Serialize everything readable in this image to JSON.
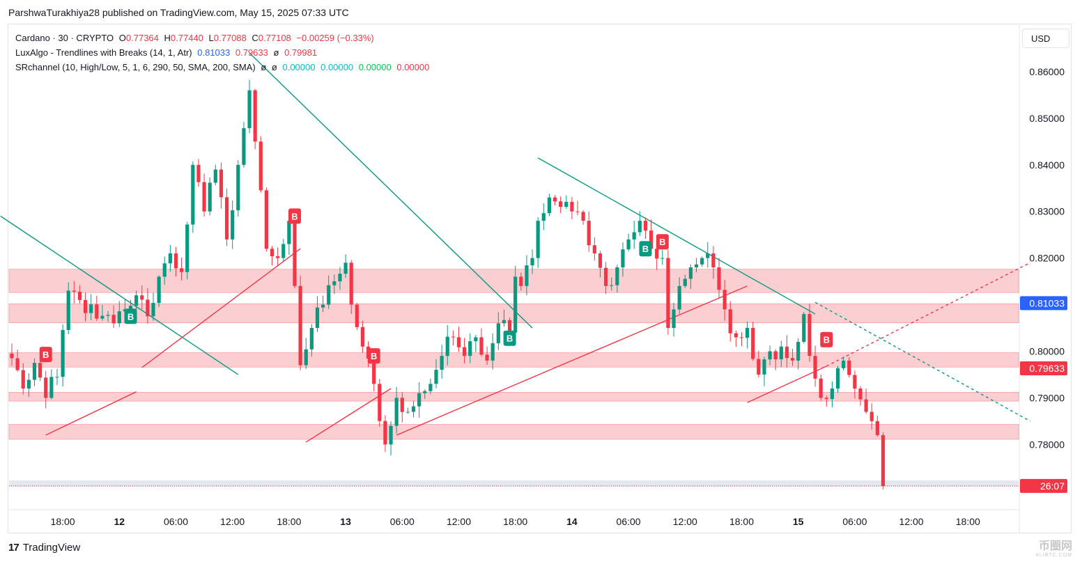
{
  "header": {
    "publisher_line": "ParshwaTurakhiya28 published on TradingView.com, May 15, 2025 07:33 UTC"
  },
  "legend": {
    "symbol": "Cardano · 30 · CRYPTO",
    "o_label": "O",
    "o_value": "0.77364",
    "h_label": "H",
    "h_value": "0.77440",
    "l_label": "L",
    "l_value": "0.77088",
    "c_label": "C",
    "c_value": "0.77108",
    "change": "−0.00259 (−0.33%)",
    "ind1_name": "LuxAlgo - Trendlines with Breaks (14, 1, Atr)",
    "ind1_v1": "0.81033",
    "ind1_v2": "0.79633",
    "ind1_v3": "ø",
    "ind1_v4": "0.79981",
    "ind2_name": "SRchannel (10, High/Low, 5, 1, 6, 290, 50, SMA, 200, SMA)",
    "ind2_sym1": "ø",
    "ind2_sym2": "ø",
    "ind2_v1": "0.00000",
    "ind2_v2": "0.00000",
    "ind2_v3": "0.00000",
    "ind2_v4": "0.00000"
  },
  "currency_button": "USD",
  "footer": {
    "logo": "17",
    "brand": "TradingView"
  },
  "watermark": {
    "main": "币圈网",
    "sub": "ALIBTC.COM"
  },
  "colors": {
    "up": "#089981",
    "down": "#f23645",
    "zone": "#f7a8ab",
    "trend_down": "#089981",
    "trend_up": "#f23645",
    "blue_badge": "#2962ff"
  },
  "chart_data": {
    "type": "candlestick",
    "title": "Cardano · 30 · CRYPTO",
    "ylim": [
      0.766,
      0.87
    ],
    "y_ticks": [
      "0.86000",
      "0.85000",
      "0.84000",
      "0.83000",
      "0.82000",
      "0.80000",
      "0.79000",
      "0.78000"
    ],
    "y_tick_values": [
      0.86,
      0.85,
      0.84,
      0.83,
      0.82,
      0.8,
      0.79,
      0.78
    ],
    "x_ticks": [
      "18:00",
      "12",
      "06:00",
      "12:00",
      "18:00",
      "13",
      "06:00",
      "12:00",
      "18:00",
      "14",
      "06:00",
      "12:00",
      "18:00",
      "15",
      "06:00",
      "12:00",
      "18:00"
    ],
    "x_tick_bars": [
      9,
      19,
      29,
      39,
      49,
      59,
      69,
      79,
      89,
      99,
      109,
      119,
      129,
      139,
      149,
      159,
      169
    ],
    "bar_count": 178,
    "price_labels": [
      {
        "text": "0.81033",
        "value": 0.81033,
        "color": "#2962ff"
      },
      {
        "text": "0.79633",
        "value": 0.79633,
        "color": "#f23645"
      },
      {
        "text": "26:07",
        "value": 0.7711,
        "color": "#f23645"
      }
    ],
    "sr_zones": [
      {
        "low": 0.8126,
        "high": 0.8176
      },
      {
        "low": 0.8061,
        "high": 0.8102
      },
      {
        "low": 0.7966,
        "high": 0.7997
      },
      {
        "low": 0.7893,
        "high": 0.7912
      },
      {
        "low": 0.7811,
        "high": 0.7843
      }
    ],
    "last_price_zone": {
      "low": 0.7709,
      "high": 0.7723
    },
    "anchor_closes": [
      [
        0,
        0.7985
      ],
      [
        2,
        0.792
      ],
      [
        4,
        0.7975
      ],
      [
        6,
        0.79
      ],
      [
        8,
        0.7945
      ],
      [
        10,
        0.813
      ],
      [
        12,
        0.811
      ],
      [
        15,
        0.807
      ],
      [
        18,
        0.806
      ],
      [
        20,
        0.809
      ],
      [
        22,
        0.812
      ],
      [
        24,
        0.8075
      ],
      [
        26,
        0.816
      ],
      [
        28,
        0.821
      ],
      [
        30,
        0.817
      ],
      [
        32,
        0.84
      ],
      [
        34,
        0.83
      ],
      [
        36,
        0.839
      ],
      [
        38,
        0.824
      ],
      [
        40,
        0.84
      ],
      [
        42,
        0.856
      ],
      [
        43,
        0.845
      ],
      [
        45,
        0.822
      ],
      [
        47,
        0.82
      ],
      [
        49,
        0.828
      ],
      [
        50,
        0.814
      ],
      [
        51,
        0.797
      ],
      [
        53,
        0.805
      ],
      [
        55,
        0.81
      ],
      [
        57,
        0.815
      ],
      [
        59,
        0.819
      ],
      [
        60,
        0.81
      ],
      [
        62,
        0.801
      ],
      [
        64,
        0.793
      ],
      [
        66,
        0.78
      ],
      [
        67,
        0.784
      ],
      [
        68,
        0.79
      ],
      [
        70,
        0.787
      ],
      [
        72,
        0.791
      ],
      [
        74,
        0.793
      ],
      [
        76,
        0.799
      ],
      [
        78,
        0.803
      ],
      [
        80,
        0.799
      ],
      [
        82,
        0.803
      ],
      [
        84,
        0.798
      ],
      [
        86,
        0.806
      ],
      [
        88,
        0.804
      ],
      [
        89,
        0.816
      ],
      [
        90,
        0.814
      ],
      [
        92,
        0.82
      ],
      [
        93,
        0.828
      ],
      [
        95,
        0.833
      ],
      [
        97,
        0.831
      ],
      [
        99,
        0.83
      ],
      [
        101,
        0.828
      ],
      [
        103,
        0.821
      ],
      [
        105,
        0.814
      ],
      [
        107,
        0.818
      ],
      [
        109,
        0.824
      ],
      [
        111,
        0.828
      ],
      [
        113,
        0.822
      ],
      [
        115,
        0.82
      ],
      [
        116,
        0.805
      ],
      [
        118,
        0.814
      ],
      [
        120,
        0.818
      ],
      [
        122,
        0.82
      ],
      [
        124,
        0.818
      ],
      [
        126,
        0.809
      ],
      [
        128,
        0.803
      ],
      [
        130,
        0.805
      ],
      [
        132,
        0.795
      ],
      [
        134,
        0.8
      ],
      [
        136,
        0.801
      ],
      [
        138,
        0.798
      ],
      [
        140,
        0.808
      ],
      [
        141,
        0.799
      ],
      [
        143,
        0.79
      ],
      [
        145,
        0.792
      ],
      [
        147,
        0.798
      ],
      [
        149,
        0.792
      ],
      [
        151,
        0.787
      ],
      [
        152,
        0.785
      ],
      [
        153,
        0.782
      ],
      [
        154,
        0.7711
      ]
    ],
    "trendlines_down": [
      {
        "from": [
          -2,
          0.829
        ],
        "to": [
          40,
          0.795
        ]
      },
      {
        "from": [
          42,
          0.864
        ],
        "to": [
          92,
          0.805
        ]
      },
      {
        "from": [
          93,
          0.8415
        ],
        "to": [
          142,
          0.808
        ]
      }
    ],
    "trendlines_down_dashed": [
      {
        "from": [
          142,
          0.8105
        ],
        "to": [
          180,
          0.785
        ]
      }
    ],
    "trendlines_up": [
      {
        "from": [
          6,
          0.782
        ],
        "to": [
          22,
          0.7913
        ]
      },
      {
        "from": [
          23,
          0.7965
        ],
        "to": [
          51,
          0.822
        ]
      },
      {
        "from": [
          52,
          0.7805
        ],
        "to": [
          67,
          0.792
        ]
      },
      {
        "from": [
          68,
          0.782
        ],
        "to": [
          130,
          0.814
        ]
      },
      {
        "from": [
          130,
          0.789
        ],
        "to": [
          144,
          0.7968
        ]
      }
    ],
    "trendlines_up_dashed": [
      {
        "from": [
          144,
          0.7968
        ],
        "to": [
          180,
          0.819
        ]
      }
    ],
    "break_badges": [
      {
        "text": "B",
        "bar": 6,
        "value": 0.7993,
        "color": "#f23645"
      },
      {
        "text": "B",
        "bar": 21,
        "value": 0.8075,
        "color": "#089981"
      },
      {
        "text": "B",
        "bar": 50,
        "value": 0.829,
        "color": "#f23645"
      },
      {
        "text": "B",
        "bar": 64,
        "value": 0.799,
        "color": "#f23645"
      },
      {
        "text": "B",
        "bar": 88,
        "value": 0.8028,
        "color": "#089981"
      },
      {
        "text": "B",
        "bar": 112,
        "value": 0.822,
        "color": "#089981"
      },
      {
        "text": "B",
        "bar": 115,
        "value": 0.8235,
        "color": "#f23645"
      },
      {
        "text": "B",
        "bar": 144,
        "value": 0.8025,
        "color": "#f23645"
      }
    ]
  }
}
